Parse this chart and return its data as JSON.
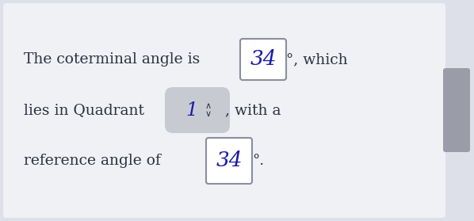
{
  "bg_outer": "#dde0e8",
  "bg_panel": "#f0f1f4",
  "text_color": "#2d3142",
  "input_box_fill": "#ffffff",
  "input_box_edge": "#8a8fa0",
  "dropdown_fill": "#c8cad2",
  "handwrite_color": "#1a1aaa",
  "tab_color": "#9a9da8",
  "line1_pre": "The coterminal angle is ",
  "line1_val": "34",
  "line1_post": "°, which",
  "line2_pre": "lies in Quadrant ",
  "line2_val": "1",
  "line2_arrow": "◂▸",
  "line2_post": ", with a",
  "line3_pre": "reference angle of ",
  "line3_val": "34",
  "line3_post": "°.",
  "fs_body": 13.5,
  "fs_val": 19,
  "fs_val2": 17,
  "fs_arrow": 9
}
